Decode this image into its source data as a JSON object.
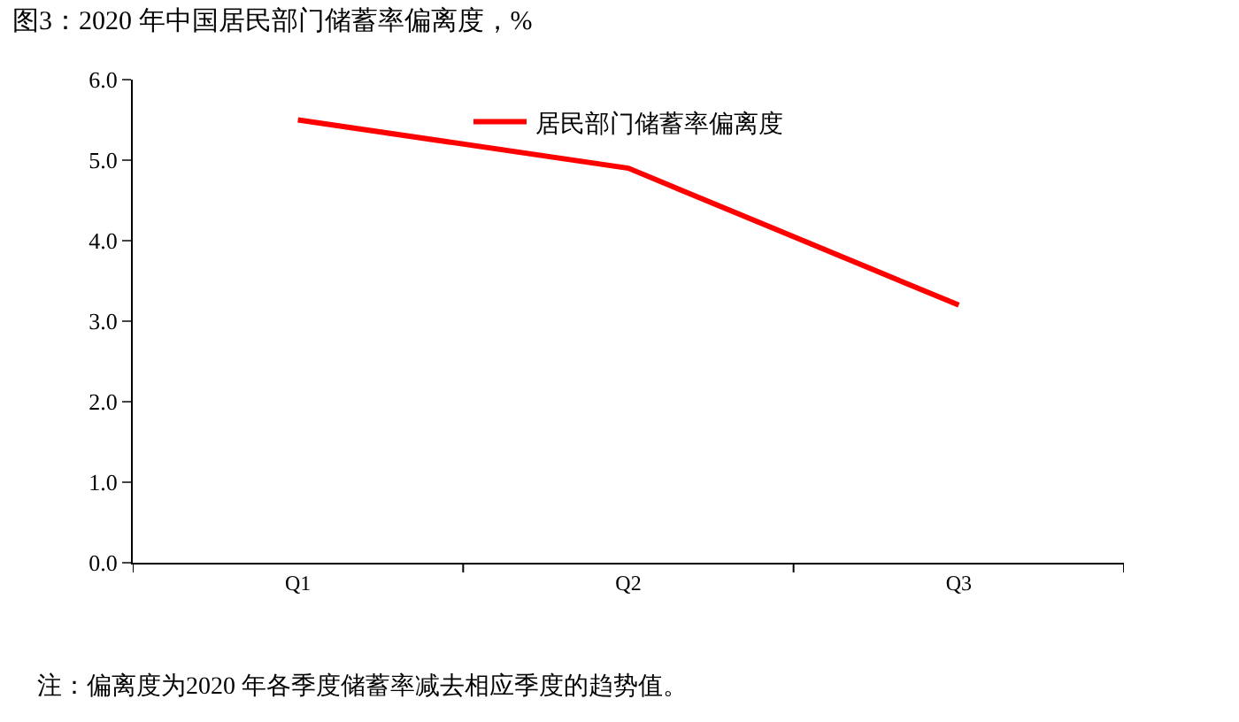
{
  "chart_data": {
    "type": "line",
    "title": "图3：2020 年中国居民部门储蓄率偏离度，%",
    "categories": [
      "Q1",
      "Q2",
      "Q3"
    ],
    "series": [
      {
        "name": "居民部门储蓄率偏离度",
        "color": "#ff0000",
        "values": [
          5.5,
          4.9,
          3.2
        ]
      }
    ],
    "ylim": [
      0,
      6
    ],
    "yticks": [
      {
        "value": 0,
        "label": "0.0"
      },
      {
        "value": 1,
        "label": "1.0"
      },
      {
        "value": 2,
        "label": "2.0"
      },
      {
        "value": 3,
        "label": "3.0"
      },
      {
        "value": 4,
        "label": "4.0"
      },
      {
        "value": 5,
        "label": "5.0"
      },
      {
        "value": 6,
        "label": "6.0"
      }
    ],
    "legend": "top",
    "marker": "none",
    "line_style": "solid",
    "annotations": [
      "注：偏离度为2020 年各季度储蓄率减去相应季度的趋势值。"
    ]
  }
}
